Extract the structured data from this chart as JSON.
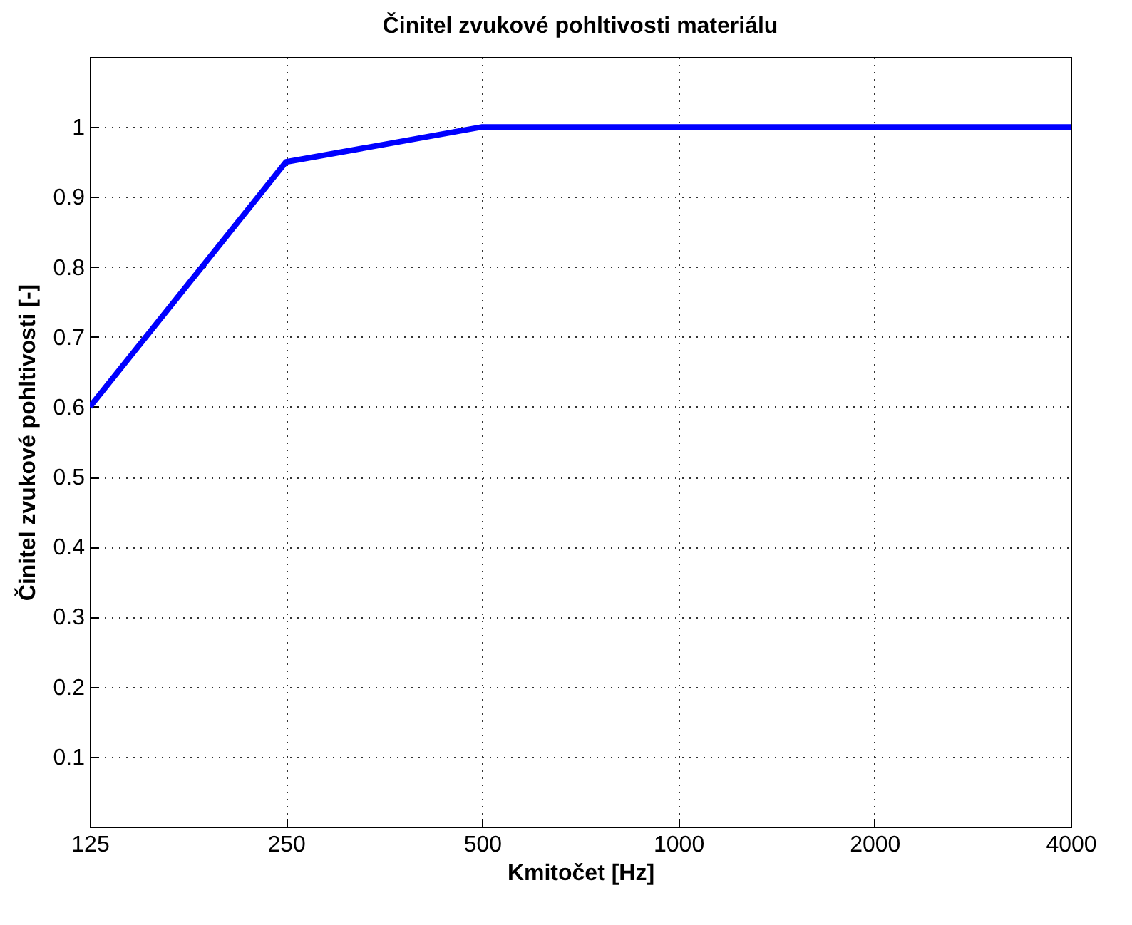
{
  "chart_data": {
    "type": "line",
    "title": "Činitel zvukové pohltivosti materiálu",
    "xlabel": "Kmitočet [Hz]",
    "ylabel": "Činitel zvukové pohltivosti [-]",
    "categories": [
      "125",
      "250",
      "500",
      "1000",
      "2000",
      "4000"
    ],
    "series": [
      {
        "color": "#0000ff",
        "values": [
          0.6,
          0.95,
          1,
          1,
          1,
          1
        ]
      }
    ],
    "ylim": [
      0,
      1.1
    ],
    "yticks": [
      0.1,
      0.2,
      0.3,
      0.4,
      0.5,
      0.6,
      0.7,
      0.8,
      0.9,
      1
    ],
    "grid": true
  }
}
